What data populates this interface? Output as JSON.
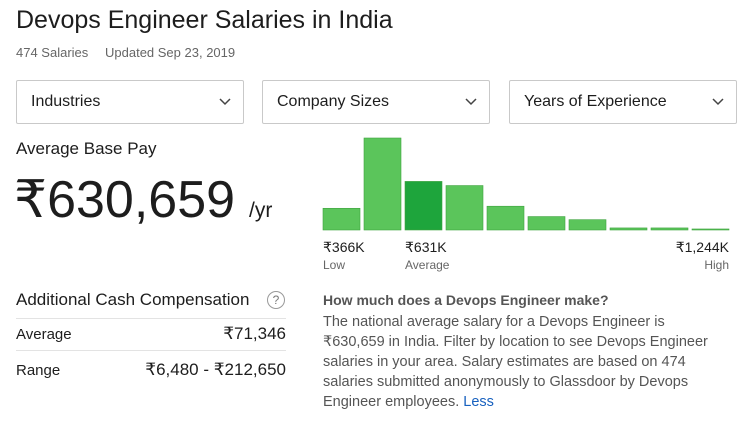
{
  "header": {
    "title": "Devops Engineer Salaries in India",
    "count": "474 Salaries",
    "updated": "Updated Sep 23, 2019"
  },
  "filters": [
    "Industries",
    "Company Sizes",
    "Years of Experience"
  ],
  "base_pay": {
    "label": "Average Base Pay",
    "value": "₹630,659",
    "unit": "/yr"
  },
  "histogram": {
    "type": "bar",
    "values": [
      21,
      89,
      47,
      43,
      23,
      13,
      10,
      2,
      2,
      1
    ],
    "colors": [
      "#5bc55b",
      "#5bc55b",
      "#1ea53c",
      "#5bc55b",
      "#5bc55b",
      "#5bc55b",
      "#5bc55b",
      "#5bc55b",
      "#5bc55b",
      "#5bc55b"
    ],
    "low": {
      "value": "₹366K",
      "label": "Low"
    },
    "average": {
      "value": "₹631K",
      "label": "Average"
    },
    "high": {
      "value": "₹1,244K",
      "label": "High"
    }
  },
  "cash": {
    "title": "Additional Cash Compensation",
    "help": "?",
    "rows": [
      [
        "Average",
        "₹71,346"
      ],
      [
        "Range",
        "₹6,480 - ₹212,650"
      ]
    ]
  },
  "about": {
    "question": "How much does a Devops Engineer make?",
    "text": "The national average salary for a Devops Engineer is ₹630,659 in India. Filter by location to see Devops Engineer salaries in your area. Salary estimates are based on 474 salaries submitted anonymously to Glassdoor by Devops Engineer employees.",
    "link": "Less"
  }
}
